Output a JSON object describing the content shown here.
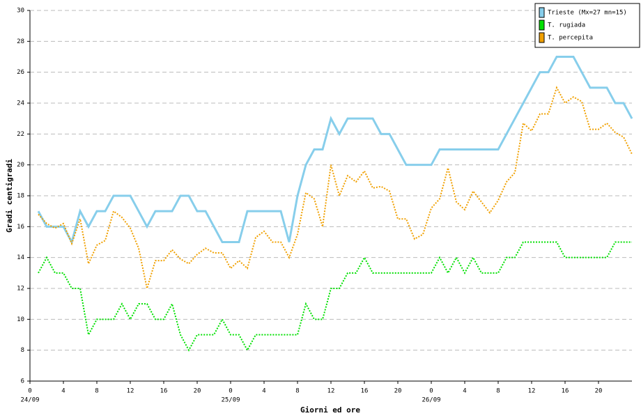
{
  "chart_data": {
    "type": "line",
    "y_label": "Gradi centigradi",
    "x_label": "Giorni ed ore",
    "x": [
      1,
      2,
      3,
      4,
      5,
      6,
      7,
      8,
      9,
      10,
      11,
      12,
      13,
      14,
      15,
      16,
      17,
      18,
      19,
      20,
      21,
      22,
      23,
      24,
      25,
      26,
      27,
      28,
      29,
      30,
      31,
      32,
      33,
      34,
      35,
      36,
      37,
      38,
      39,
      40,
      41,
      42,
      43,
      44,
      45,
      46,
      47,
      48,
      49,
      50,
      51,
      52,
      53,
      54,
      55,
      56,
      57,
      58,
      59,
      60,
      61,
      62,
      63,
      64,
      65,
      66,
      67,
      68,
      69,
      70,
      71,
      72
    ],
    "series": [
      {
        "name": "Trieste (Mx=27 mn=15)",
        "color": "#87ceeb",
        "style": "solid",
        "values": [
          17,
          16,
          16,
          16,
          15,
          17,
          16,
          17,
          17,
          18,
          18,
          18,
          17,
          16,
          17,
          17,
          17,
          18,
          18,
          17,
          17,
          16,
          15,
          15,
          15,
          17,
          17,
          17,
          17,
          17,
          15,
          18,
          20,
          21,
          21,
          23,
          22,
          23,
          23,
          23,
          23,
          22,
          22,
          21,
          20,
          20,
          20,
          20,
          21,
          21,
          21,
          21,
          21,
          21,
          21,
          21,
          22,
          23,
          24,
          25,
          26,
          26,
          27,
          27,
          27,
          26,
          25,
          25,
          25,
          24,
          24,
          23
        ]
      },
      {
        "name": "T. rugiada",
        "color": "#00e000",
        "style": "dotted",
        "values": [
          13,
          14,
          13,
          13,
          12,
          12,
          9,
          10,
          10,
          10,
          11,
          10,
          11,
          11,
          10,
          10,
          11,
          9,
          8,
          9,
          9,
          9,
          10,
          9,
          9,
          8,
          9,
          9,
          9,
          9,
          9,
          9,
          11,
          10,
          10,
          12,
          12,
          13,
          13,
          14,
          13,
          13,
          13,
          13,
          13,
          13,
          13,
          13,
          14,
          13,
          14,
          13,
          14,
          13,
          13,
          13,
          14,
          14,
          15,
          15,
          15,
          15,
          15,
          14,
          14,
          14,
          14,
          14,
          14,
          15,
          15,
          15
        ]
      },
      {
        "name": "T. percepita",
        "color": "#f0a000",
        "style": "dotted",
        "values": [
          16.8,
          16.2,
          15.9,
          16.2,
          14.9,
          16.5,
          13.6,
          14.8,
          15.1,
          17,
          16.6,
          15.9,
          14.6,
          12,
          13.8,
          13.8,
          14.5,
          13.9,
          13.6,
          14.2,
          14.6,
          14.3,
          14.3,
          13.3,
          13.8,
          13.3,
          15.3,
          15.7,
          15,
          15,
          14,
          15.5,
          18.2,
          17.8,
          16,
          20,
          18,
          19.3,
          18.9,
          19.6,
          18.5,
          18.6,
          18.3,
          16.5,
          16.5,
          15.2,
          15.5,
          17.2,
          17.8,
          19.8,
          17.6,
          17.1,
          18.3,
          17.6,
          16.9,
          17.7,
          18.9,
          19.5,
          22.7,
          22.2,
          23.3,
          23.3,
          25,
          24,
          24.4,
          24.1,
          22.3,
          22.3,
          22.7,
          22.1,
          21.8,
          20.7
        ]
      }
    ],
    "xlim": [
      0,
      72
    ],
    "ylim": [
      6,
      30
    ],
    "xticks": [
      {
        "value": 0,
        "label": "0"
      },
      {
        "value": 4,
        "label": "4"
      },
      {
        "value": 8,
        "label": "8"
      },
      {
        "value": 12,
        "label": "12"
      },
      {
        "value": 16,
        "label": "16"
      },
      {
        "value": 20,
        "label": "20"
      },
      {
        "value": 24,
        "label": "0"
      },
      {
        "value": 28,
        "label": "4"
      },
      {
        "value": 32,
        "label": "8"
      },
      {
        "value": 36,
        "label": "12"
      },
      {
        "value": 40,
        "label": "16"
      },
      {
        "value": 44,
        "label": "20"
      },
      {
        "value": 48,
        "label": "0"
      },
      {
        "value": 52,
        "label": "4"
      },
      {
        "value": 56,
        "label": "8"
      },
      {
        "value": 60,
        "label": "12"
      },
      {
        "value": 64,
        "label": "16"
      },
      {
        "value": 68,
        "label": "20"
      }
    ],
    "date_ticks": [
      {
        "value": 0,
        "label": "24/09"
      },
      {
        "value": 24,
        "label": "25/09"
      },
      {
        "value": 48,
        "label": "26/09"
      }
    ],
    "yticks": [
      6,
      8,
      10,
      12,
      14,
      16,
      18,
      20,
      22,
      24,
      26,
      28,
      30
    ],
    "grid": true,
    "legend": "upper right"
  }
}
